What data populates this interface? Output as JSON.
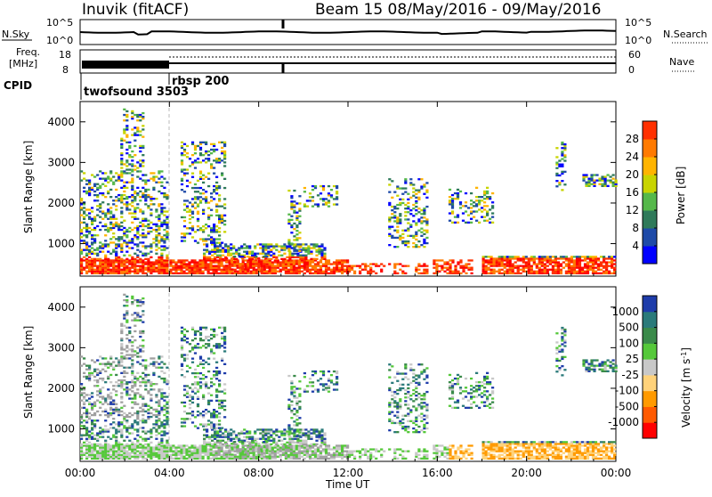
{
  "header": {
    "station": "Inuvik (fitACF)",
    "beam_period": "Beam 15 08/May/2016 - 09/May/2016"
  },
  "side_labels": {
    "nsky": "N.Sky",
    "freq_line1": "Freq.",
    "freq_line2": "[MHz]",
    "cpid": "CPID",
    "nsearch": "N.Search",
    "nave": "Nave",
    "nsky_top": "10^5",
    "nsky_bottom": "10^0",
    "nsearch_top": "10^5",
    "nsearch_bottom": "10^0",
    "freq_top": "18",
    "freq_bottom": "8",
    "nave_top": "60",
    "nave_bottom": "0"
  },
  "cpid_labels": [
    "twofsound 3503",
    "rbsp 200"
  ],
  "colors": {
    "power": [
      "#0000ff",
      "#1e4aa8",
      "#2f7a5a",
      "#55b84a",
      "#c8d400",
      "#ffb400",
      "#ff7a00",
      "#ff3000",
      "#ff0000"
    ],
    "velocity": [
      "#ff0000",
      "#ff5a00",
      "#ff9a00",
      "#ffd27a",
      "#c8c8c8",
      "#55c83a",
      "#3a8a4a",
      "#2a7a7a",
      "#1e3caa"
    ],
    "ground": "#a0a0a0"
  },
  "chart_data": [
    {
      "type": "heatmap",
      "name": "power-panel",
      "ylabel": "Slant Range [km]",
      "xlabel": "",
      "x_ticks": [
        "00:00",
        "04:00",
        "08:00",
        "12:00",
        "16:00",
        "20:00",
        "00:00"
      ],
      "y_ticks": [
        "1000",
        "2000",
        "3000",
        "4000"
      ],
      "ylim": [
        200,
        4500
      ],
      "xlim_hours": [
        0,
        24
      ],
      "colorbar": {
        "label": "Power [dB]",
        "ticks": [
          "4",
          "8",
          "12",
          "16",
          "20",
          "24",
          "28"
        ]
      }
    },
    {
      "type": "heatmap",
      "name": "velocity-panel",
      "ylabel": "Slant Range [km]",
      "xlabel": "Time UT",
      "x_ticks": [
        "00:00",
        "04:00",
        "08:00",
        "12:00",
        "16:00",
        "20:00",
        "00:00"
      ],
      "y_ticks": [
        "1000",
        "2000",
        "3000",
        "4000"
      ],
      "ylim": [
        200,
        4500
      ],
      "xlim_hours": [
        0,
        24
      ],
      "colorbar": {
        "label": "Velocity [m s^-1]",
        "ticks": [
          "1000",
          "500",
          "100",
          "25",
          "-25",
          "-100",
          "-500",
          "-1000"
        ]
      }
    }
  ]
}
